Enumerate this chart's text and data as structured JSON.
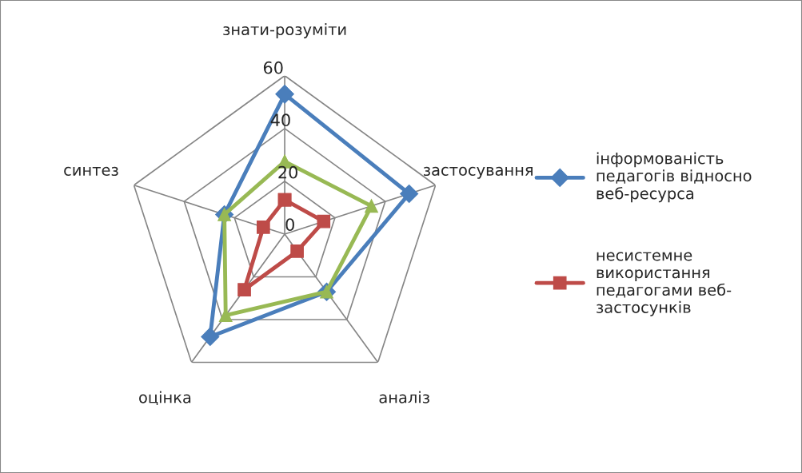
{
  "chart_data": {
    "type": "radar",
    "categories": [
      "знати-розуміти",
      "застосування",
      "аналіз",
      "оцінка",
      "синтез"
    ],
    "series": [
      {
        "name": "інформованість\nпедагогів відносно\nвеб-ресурса",
        "color": "#4a7ebb",
        "marker": "diamond",
        "values": [
          53,
          49.5,
          27,
          48,
          24
        ]
      },
      {
        "name": "несистемне\nвикористання\nпедагогами веб-\nзастосунків",
        "color": "#be4b48",
        "marker": "square",
        "values": [
          13,
          15.5,
          8,
          26,
          8.5
        ]
      },
      {
        "color": "#98b954",
        "marker": "triangle",
        "values": [
          27.5,
          34.5,
          27,
          38,
          24
        ]
      }
    ],
    "ylim": [
      0,
      60
    ],
    "yticks": [
      0,
      20,
      40,
      60
    ],
    "grid": true,
    "legend": "right"
  }
}
